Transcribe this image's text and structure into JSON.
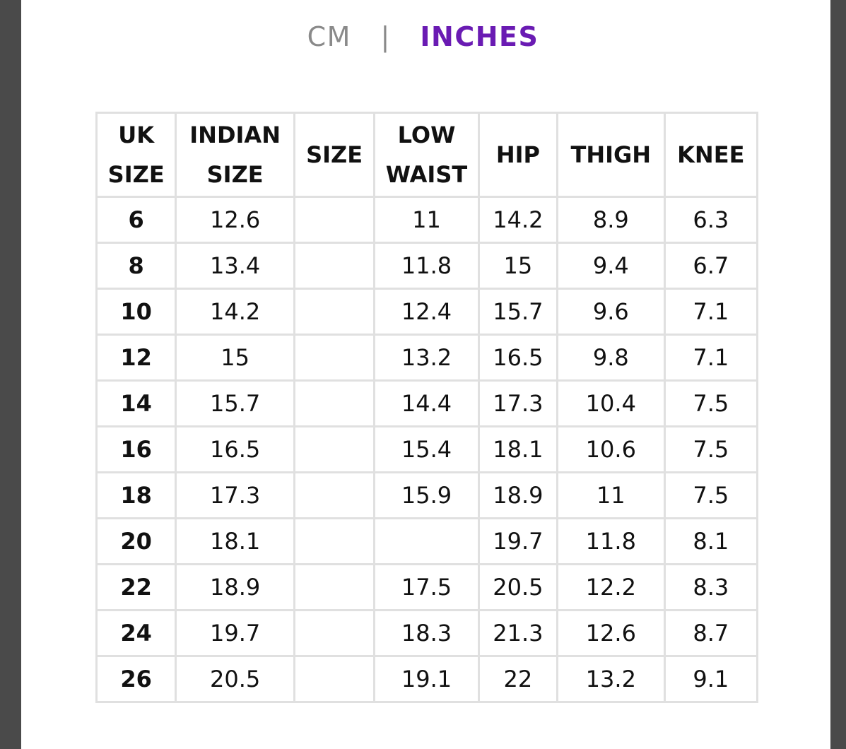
{
  "unit_toggle": {
    "cm_label": "CM",
    "separator": "|",
    "inches_label": "INCHES",
    "active": "INCHES",
    "active_color": "#6a1bb3",
    "inactive_color": "#8a8a8a"
  },
  "table": {
    "headers": [
      [
        "UK",
        "SIZE"
      ],
      [
        "INDIAN",
        "SIZE"
      ],
      [
        "SIZE"
      ],
      [
        "LOW",
        "WAIST"
      ],
      [
        "HIP"
      ],
      [
        "THIGH"
      ],
      [
        "KNEE"
      ]
    ],
    "rows": [
      [
        "6",
        "12.6",
        "",
        "11",
        "14.2",
        "8.9",
        "6.3"
      ],
      [
        "8",
        "13.4",
        "",
        "11.8",
        "15",
        "9.4",
        "6.7"
      ],
      [
        "10",
        "14.2",
        "",
        "12.4",
        "15.7",
        "9.6",
        "7.1"
      ],
      [
        "12",
        "15",
        "",
        "13.2",
        "16.5",
        "9.8",
        "7.1"
      ],
      [
        "14",
        "15.7",
        "",
        "14.4",
        "17.3",
        "10.4",
        "7.5"
      ],
      [
        "16",
        "16.5",
        "",
        "15.4",
        "18.1",
        "10.6",
        "7.5"
      ],
      [
        "18",
        "17.3",
        "",
        "15.9",
        "18.9",
        "11",
        "7.5"
      ],
      [
        "20",
        "18.1",
        "",
        "",
        "19.7",
        "11.8",
        "8.1"
      ],
      [
        "22",
        "18.9",
        "",
        "17.5",
        "20.5",
        "12.2",
        "8.3"
      ],
      [
        "24",
        "19.7",
        "",
        "18.3",
        "21.3",
        "12.6",
        "8.7"
      ],
      [
        "26",
        "20.5",
        "",
        "19.1",
        "22",
        "13.2",
        "9.1"
      ]
    ]
  }
}
